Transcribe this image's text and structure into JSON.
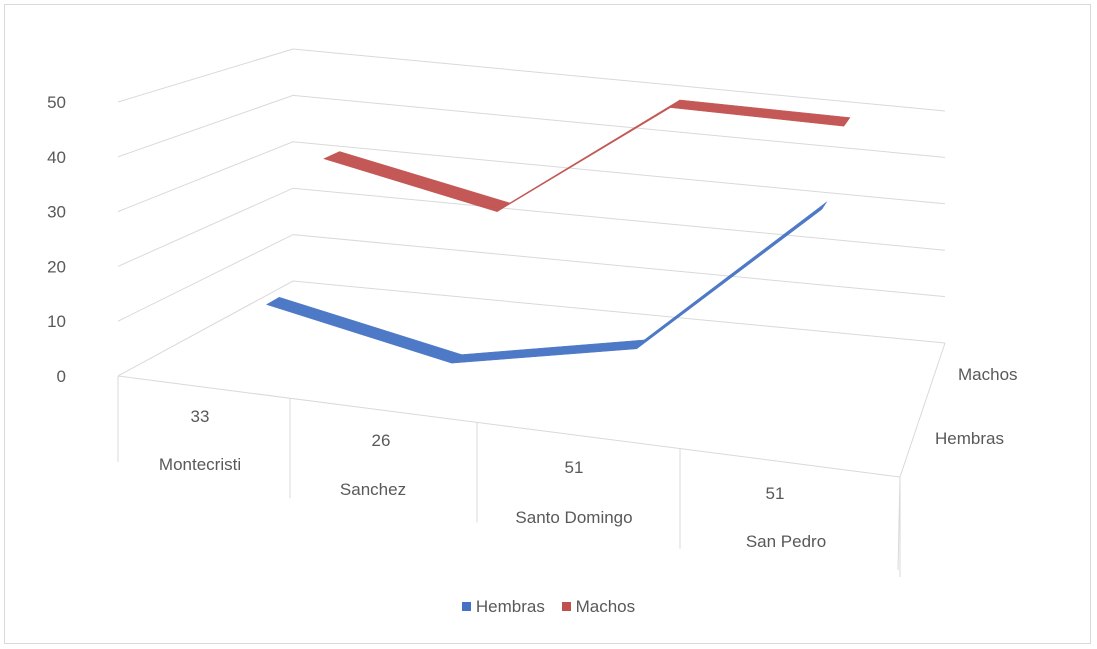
{
  "chart_data": {
    "type": "line",
    "view": "3d",
    "categories": [
      "Montecristi",
      "Sanchez",
      "Santo Domingo",
      "San Pedro"
    ],
    "series": [
      {
        "name": "Hembras",
        "color": "#4472c4",
        "values": [
          10,
          3,
          10,
          41
        ]
      },
      {
        "name": "Machos",
        "color": "#c0504d",
        "values": [
          33,
          26,
          51,
          51
        ]
      }
    ],
    "data_table_values": [
      "33",
      "26",
      "51",
      "51"
    ],
    "ytick_labels": [
      "0",
      "10",
      "20",
      "30",
      "40",
      "50"
    ],
    "ylim": [
      0,
      50
    ],
    "depth_labels": [
      "Machos",
      "Hembras"
    ],
    "grid": true,
    "legend_position": "bottom"
  }
}
